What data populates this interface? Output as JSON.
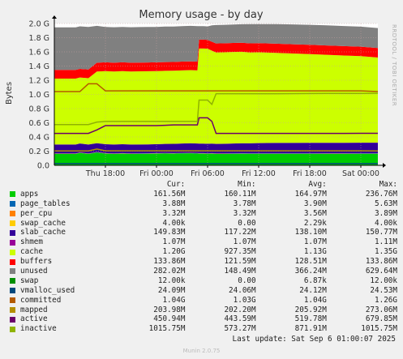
{
  "chart_data": {
    "type": "area",
    "title": "Memory usage - by day",
    "side_label": "RRDTOOL / TOBI OETIKER",
    "ylabel": "Bytes",
    "ylim": [
      0,
      2000000000
    ],
    "yticks": [
      "0.0",
      "0.2 G",
      "0.4 G",
      "0.6 G",
      "0.8 G",
      "1.0 G",
      "1.2 G",
      "1.4 G",
      "1.6 G",
      "1.8 G",
      "2.0 G"
    ],
    "xticks": [
      "Thu 18:00",
      "Fri 00:00",
      "Fri 06:00",
      "Fri 12:00",
      "Fri 18:00",
      "Sat 00:00"
    ],
    "x_hours": [
      12,
      13.5,
      14.5,
      15,
      16,
      17,
      18,
      19,
      20,
      21,
      22,
      23,
      23.8,
      24,
      25,
      26,
      27,
      28,
      28.8,
      29,
      29.5,
      30,
      30.5,
      31,
      32,
      33,
      34,
      35,
      36,
      38,
      40,
      42,
      44,
      46,
      48,
      50
    ],
    "grid": true,
    "series": [
      {
        "name": "apps",
        "color": "#00cc00",
        "stacked": true,
        "values": [
          160,
          160,
          160,
          175,
          160,
          180,
          165,
          160,
          165,
          160,
          162,
          163,
          165,
          165,
          166,
          165,
          168,
          170,
          166,
          165,
          165,
          162,
          165,
          160,
          160,
          162,
          163,
          162,
          162,
          162,
          162,
          162,
          161,
          161,
          162,
          162
        ]
      },
      {
        "name": "page_tables",
        "color": "#0066b3",
        "stacked": true,
        "values": [
          3.8,
          3.8,
          3.8,
          3.8,
          3.8,
          3.8,
          3.8,
          3.8,
          3.8,
          3.8,
          3.8,
          3.8,
          3.8,
          3.8,
          3.8,
          3.8,
          3.8,
          3.8,
          3.8,
          3.8,
          3.8,
          3.8,
          3.8,
          3.8,
          3.8,
          3.8,
          3.8,
          3.8,
          3.8,
          3.8,
          3.8,
          3.8,
          3.8,
          3.8,
          3.8,
          3.8
        ]
      },
      {
        "name": "per_cpu",
        "color": "#ff8000",
        "stacked": true,
        "values": [
          3.5,
          3.5,
          3.5,
          3.5,
          3.5,
          3.5,
          3.5,
          3.5,
          3.5,
          3.5,
          3.5,
          3.5,
          3.5,
          3.5,
          3.5,
          3.5,
          3.5,
          3.5,
          3.5,
          3.5,
          3.5,
          3.5,
          3.5,
          3.5,
          3.5,
          3.5,
          3.5,
          3.5,
          3.5,
          3.5,
          3.5,
          3.5,
          3.5,
          3.5,
          3.5,
          3.5
        ]
      },
      {
        "name": "swap_cache",
        "color": "#ffcc00",
        "stacked": true,
        "values": [
          0.002,
          0.002,
          0.002,
          0.002,
          0.002,
          0.002,
          0.002,
          0.002,
          0.002,
          0.002,
          0.002,
          0.002,
          0.002,
          0.002,
          0.002,
          0.002,
          0.002,
          0.002,
          0.002,
          0.002,
          0.002,
          0.002,
          0.002,
          0.002,
          0.002,
          0.002,
          0.002,
          0.002,
          0.002,
          0.002,
          0.002,
          0.002,
          0.002,
          0.002,
          0.002,
          0.002
        ]
      },
      {
        "name": "slab_cache",
        "color": "#330099",
        "stacked": true,
        "values": [
          125,
          125,
          125,
          125,
          125,
          125,
          125,
          125,
          125,
          125,
          125,
          125,
          125,
          125,
          128,
          130,
          132,
          134,
          134,
          134,
          134,
          134,
          134,
          134,
          136,
          138,
          140,
          142,
          144,
          146,
          147,
          148,
          149,
          149,
          150,
          150
        ]
      },
      {
        "name": "shmem",
        "color": "#990099",
        "stacked": true,
        "values": [
          1.07,
          1.07,
          1.07,
          1.07,
          1.07,
          1.07,
          1.07,
          1.07,
          1.07,
          1.07,
          1.07,
          1.07,
          1.07,
          1.07,
          1.07,
          1.07,
          1.07,
          1.07,
          1.07,
          1.07,
          1.07,
          1.07,
          1.07,
          1.07,
          1.07,
          1.07,
          1.07,
          1.07,
          1.07,
          1.07,
          1.07,
          1.07,
          1.07,
          1.07,
          1.07,
          1.07
        ]
      },
      {
        "name": "cache",
        "color": "#ccff00",
        "stacked": true,
        "values": [
          930,
          930,
          930,
          930,
          935,
          1010,
          1030,
          1030,
          1030,
          1030,
          1030,
          1030,
          1030,
          1030,
          1030,
          1030,
          1030,
          1030,
          1030,
          1340,
          1340,
          1340,
          1310,
          1290,
          1290,
          1290,
          1290,
          1280,
          1280,
          1270,
          1260,
          1250,
          1240,
          1230,
          1220,
          1200
        ]
      },
      {
        "name": "buffers",
        "color": "#ff0000",
        "stacked": true,
        "values": [
          122,
          122,
          122,
          122,
          122,
          124,
          124,
          124,
          124,
          124,
          124,
          124,
          124,
          124,
          124,
          124,
          124,
          124,
          124,
          125,
          125,
          125,
          126,
          126,
          127,
          127,
          128,
          128,
          128,
          129,
          130,
          131,
          132,
          133,
          133,
          134
        ]
      },
      {
        "name": "unused",
        "color": "#808080",
        "stacked": true,
        "values": [
          600,
          600,
          600,
          600,
          600,
          520,
          500,
          500,
          500,
          500,
          500,
          500,
          500,
          500,
          500,
          500,
          500,
          500,
          500,
          190,
          190,
          190,
          230,
          260,
          260,
          260,
          260,
          270,
          270,
          275,
          280,
          282,
          283,
          283,
          282,
          282
        ]
      },
      {
        "name": "swap",
        "color": "#008f00",
        "stacked": true,
        "values": [
          0.012,
          0.012,
          0.012,
          0.012,
          0.012,
          0.012,
          0.012,
          0.012,
          0.012,
          0.012,
          0.012,
          0.012,
          0.012,
          0.012,
          0.012,
          0.012,
          0.012,
          0.012,
          0.012,
          0.012,
          0.012,
          0.012,
          0.012,
          0.012,
          0.012,
          0.012,
          0.012,
          0.012,
          0.012,
          0.012,
          0.012,
          0.012,
          0.012,
          0.012,
          0.012,
          0.012
        ]
      },
      {
        "name": "vmalloc_used",
        "color": "#00487d",
        "stacked": false,
        "values": [
          24.1,
          24.1,
          24.1,
          24.1,
          24.1,
          24.1,
          24.1,
          24.1,
          24.1,
          24.1,
          24.1,
          24.1,
          24.1,
          24.1,
          24.1,
          24.1,
          24.1,
          24.1,
          24.1,
          24.1,
          24.1,
          24.1,
          24.1,
          24.1,
          24.1,
          24.1,
          24.1,
          24.1,
          24.1,
          24.1,
          24.1,
          24.1,
          24.1,
          24.1,
          24.1,
          24.1
        ]
      },
      {
        "name": "committed",
        "color": "#b35a00",
        "stacked": false,
        "values": [
          1040,
          1040,
          1040,
          1040,
          1150,
          1150,
          1050,
          1050,
          1050,
          1050,
          1050,
          1050,
          1050,
          1050,
          1050,
          1050,
          1050,
          1050,
          1050,
          1050,
          1050,
          1050,
          1050,
          1050,
          1050,
          1050,
          1050,
          1050,
          1050,
          1050,
          1050,
          1050,
          1050,
          1050,
          1050,
          1040
        ]
      },
      {
        "name": "mapped",
        "color": "#b38f00",
        "stacked": false,
        "values": [
          203,
          203,
          203,
          203,
          203,
          230,
          205,
          205,
          205,
          205,
          205,
          205,
          205,
          205,
          205,
          205,
          205,
          205,
          205,
          205,
          205,
          205,
          205,
          205,
          205,
          205,
          205,
          205,
          205,
          205,
          205,
          205,
          205,
          205,
          205,
          204
        ]
      },
      {
        "name": "active",
        "color": "#6b006b",
        "stacked": false,
        "values": [
          450,
          450,
          450,
          450,
          450,
          500,
          560,
          560,
          560,
          560,
          560,
          560,
          560,
          560,
          565,
          570,
          570,
          570,
          570,
          670,
          670,
          670,
          620,
          450,
          450,
          450,
          450,
          450,
          450,
          450,
          450,
          450,
          450,
          450,
          451,
          451
        ]
      },
      {
        "name": "inactive",
        "color": "#8fb300",
        "stacked": false,
        "values": [
          575,
          575,
          575,
          575,
          575,
          610,
          620,
          620,
          620,
          620,
          620,
          620,
          620,
          620,
          620,
          620,
          620,
          620,
          620,
          920,
          920,
          920,
          860,
          1010,
          1010,
          1010,
          1010,
          1010,
          1010,
          1010,
          1012,
          1013,
          1014,
          1015,
          1015,
          1016
        ]
      }
    ],
    "legend": {
      "headers": [
        "Cur:",
        "Min:",
        "Avg:",
        "Max:"
      ],
      "rows": [
        {
          "name": "apps",
          "color": "#00cc00",
          "cur": "161.56M",
          "min": "160.11M",
          "avg": "164.97M",
          "max": "236.76M"
        },
        {
          "name": "page_tables",
          "color": "#0066b3",
          "cur": "3.88M",
          "min": "3.78M",
          "avg": "3.90M",
          "max": "5.63M"
        },
        {
          "name": "per_cpu",
          "color": "#ff8000",
          "cur": "3.32M",
          "min": "3.32M",
          "avg": "3.56M",
          "max": "3.89M"
        },
        {
          "name": "swap_cache",
          "color": "#ffcc00",
          "cur": "4.00k",
          "min": "0.00",
          "avg": "2.29k",
          "max": "4.00k"
        },
        {
          "name": "slab_cache",
          "color": "#330099",
          "cur": "149.83M",
          "min": "117.22M",
          "avg": "138.10M",
          "max": "150.77M"
        },
        {
          "name": "shmem",
          "color": "#990099",
          "cur": "1.07M",
          "min": "1.07M",
          "avg": "1.07M",
          "max": "1.11M"
        },
        {
          "name": "cache",
          "color": "#ccff00",
          "cur": "1.20G",
          "min": "927.35M",
          "avg": "1.13G",
          "max": "1.35G"
        },
        {
          "name": "buffers",
          "color": "#ff0000",
          "cur": "133.86M",
          "min": "121.59M",
          "avg": "128.51M",
          "max": "133.86M"
        },
        {
          "name": "unused",
          "color": "#808080",
          "cur": "282.02M",
          "min": "148.49M",
          "avg": "366.24M",
          "max": "629.64M"
        },
        {
          "name": "swap",
          "color": "#008f00",
          "cur": "12.00k",
          "min": "0.00",
          "avg": "6.87k",
          "max": "12.00k"
        },
        {
          "name": "vmalloc_used",
          "color": "#00487d",
          "cur": "24.09M",
          "min": "24.06M",
          "avg": "24.12M",
          "max": "24.53M"
        },
        {
          "name": "committed",
          "color": "#b35a00",
          "cur": "1.04G",
          "min": "1.03G",
          "avg": "1.04G",
          "max": "1.26G"
        },
        {
          "name": "mapped",
          "color": "#b38f00",
          "cur": "203.98M",
          "min": "202.20M",
          "avg": "205.92M",
          "max": "273.06M"
        },
        {
          "name": "active",
          "color": "#6b006b",
          "cur": "450.94M",
          "min": "443.59M",
          "avg": "519.78M",
          "max": "679.85M"
        },
        {
          "name": "inactive",
          "color": "#8fb300",
          "cur": "1015.75M",
          "min": "573.27M",
          "avg": "871.91M",
          "max": "1015.75M"
        }
      ]
    },
    "last_update": "Last update:  Sat Sep  6 01:00:07 2025",
    "footer": "Munin 2.0.75"
  }
}
